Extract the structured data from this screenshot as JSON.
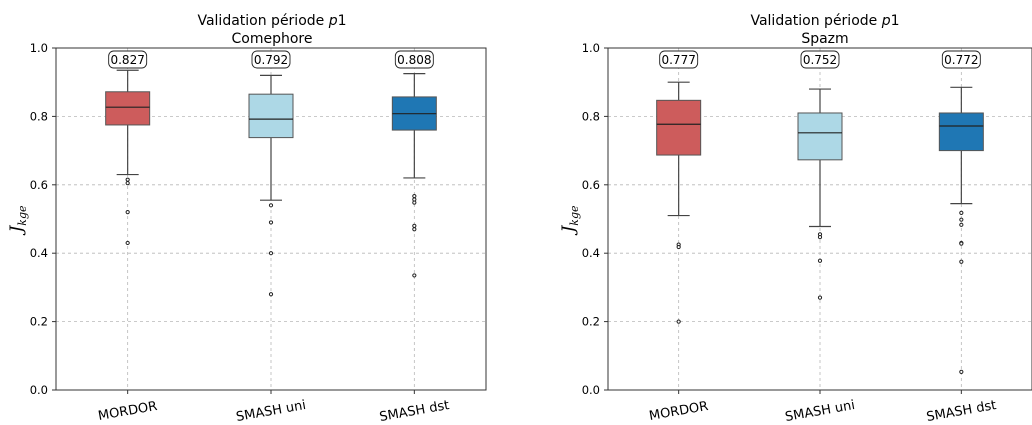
{
  "chart_data": [
    {
      "type": "box",
      "title_line1": "Validation période ",
      "title_italic": "p",
      "title_tail": "1",
      "subtitle": "Comephore",
      "ylabel_main": "J",
      "ylabel_sub": "kge",
      "ylim": [
        0.0,
        1.0
      ],
      "yticks": [
        "0.0",
        "0.2",
        "0.4",
        "0.6",
        "0.8",
        "1.0"
      ],
      "grid": true,
      "categories": [
        "MORDOR",
        "SMASH uni",
        "SMASH dst"
      ],
      "colors": [
        "#cd5c5c",
        "#add8e6",
        "#1f77b4"
      ],
      "boxes": [
        {
          "name": "MORDOR",
          "whislo": 0.63,
          "q1": 0.775,
          "med": 0.827,
          "q3": 0.872,
          "whishi": 0.935,
          "median_label": "0.827",
          "fliers": [
            0.615,
            0.605,
            0.52,
            0.43
          ]
        },
        {
          "name": "SMASH uni",
          "whislo": 0.555,
          "q1": 0.738,
          "med": 0.792,
          "q3": 0.865,
          "whishi": 0.92,
          "median_label": "0.792",
          "fliers": [
            0.54,
            0.49,
            0.4,
            0.28
          ]
        },
        {
          "name": "SMASH dst",
          "whislo": 0.62,
          "q1": 0.76,
          "med": 0.808,
          "q3": 0.857,
          "whishi": 0.925,
          "median_label": "0.808",
          "fliers": [
            0.567,
            0.557,
            0.548,
            0.48,
            0.47,
            0.335
          ]
        }
      ]
    },
    {
      "type": "box",
      "title_line1": "Validation période ",
      "title_italic": "p",
      "title_tail": "1",
      "subtitle": "Spazm",
      "ylabel_main": "J",
      "ylabel_sub": "kge",
      "ylim": [
        0.0,
        1.0
      ],
      "yticks": [
        "0.0",
        "0.2",
        "0.4",
        "0.6",
        "0.8",
        "1.0"
      ],
      "grid": true,
      "categories": [
        "MORDOR",
        "SMASH uni",
        "SMASH dst"
      ],
      "colors": [
        "#cd5c5c",
        "#add8e6",
        "#1f77b4"
      ],
      "boxes": [
        {
          "name": "MORDOR",
          "whislo": 0.51,
          "q1": 0.687,
          "med": 0.777,
          "q3": 0.847,
          "whishi": 0.9,
          "median_label": "0.777",
          "fliers": [
            0.425,
            0.418,
            0.2
          ]
        },
        {
          "name": "SMASH uni",
          "whislo": 0.478,
          "q1": 0.673,
          "med": 0.752,
          "q3": 0.81,
          "whishi": 0.88,
          "median_label": "0.752",
          "fliers": [
            0.455,
            0.447,
            0.378,
            0.27
          ]
        },
        {
          "name": "SMASH dst",
          "whislo": 0.545,
          "q1": 0.7,
          "med": 0.772,
          "q3": 0.81,
          "whishi": 0.885,
          "median_label": "0.772",
          "fliers": [
            0.518,
            0.498,
            0.483,
            0.43,
            0.428,
            0.375,
            0.053
          ]
        }
      ]
    }
  ]
}
